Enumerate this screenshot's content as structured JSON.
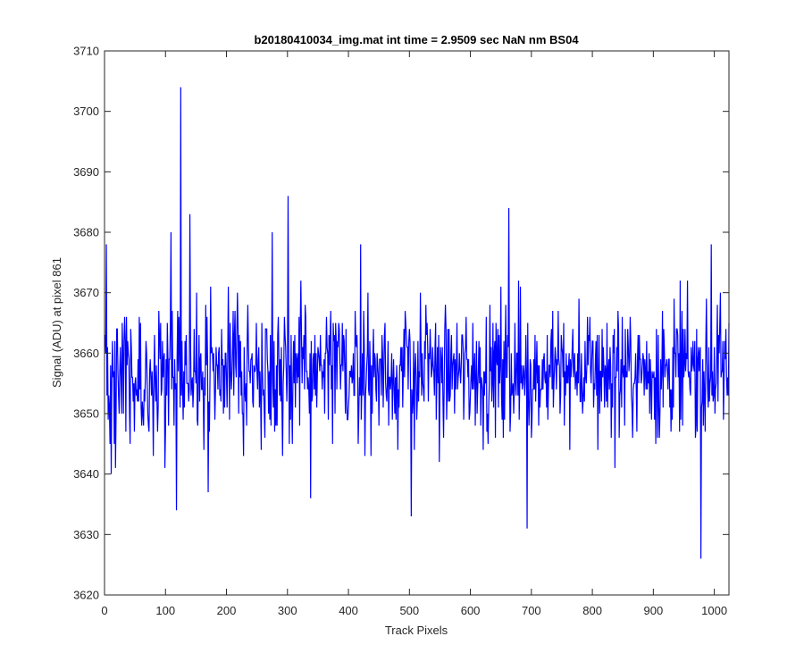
{
  "chart_data": {
    "type": "line",
    "title": "b20180410034_img.mat int time = 2.9509 sec  NaN nm BS04",
    "xlabel": "Track Pixels",
    "ylabel": "Signal (ADU) at pixel 861",
    "xlim": [
      0,
      1024
    ],
    "ylim": [
      3620,
      3710
    ],
    "xticks": [
      0,
      100,
      200,
      300,
      400,
      500,
      600,
      700,
      800,
      900,
      1000
    ],
    "yticks": [
      3620,
      3630,
      3640,
      3650,
      3660,
      3670,
      3680,
      3690,
      3700,
      3710
    ],
    "grid": false,
    "box": true,
    "series": [
      {
        "color": "#0000ff",
        "x_start": 1,
        "x_step": 1,
        "count": 1024,
        "baseline_mean": 3657,
        "typical_range": [
          3645,
          3668
        ],
        "notable_points": [
          {
            "x": 3,
            "y": 3678
          },
          {
            "x": 11,
            "y": 3640
          },
          {
            "x": 18,
            "y": 3641
          },
          {
            "x": 109,
            "y": 3680
          },
          {
            "x": 118,
            "y": 3634
          },
          {
            "x": 125,
            "y": 3704
          },
          {
            "x": 140,
            "y": 3683
          },
          {
            "x": 170,
            "y": 3637
          },
          {
            "x": 275,
            "y": 3680
          },
          {
            "x": 301,
            "y": 3686
          },
          {
            "x": 338,
            "y": 3636
          },
          {
            "x": 420,
            "y": 3678
          },
          {
            "x": 503,
            "y": 3633
          },
          {
            "x": 663,
            "y": 3684
          },
          {
            "x": 693,
            "y": 3631
          },
          {
            "x": 978,
            "y": 3626
          },
          {
            "x": 995,
            "y": 3678
          }
        ]
      }
    ]
  }
}
